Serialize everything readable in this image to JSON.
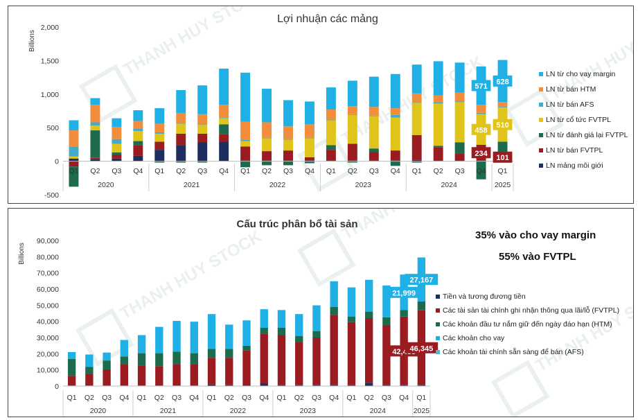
{
  "watermark": "THANH HUY STOCK",
  "colors": {
    "cho_vay": "#1fb0e6",
    "htm": "#f28e3b",
    "afs": "#45a9c8",
    "co_tuc": "#e0c41a",
    "danh_gia": "#1b6b4c",
    "fvtpl_lai": "#9b1c20",
    "moi_gioi": "#1e2e5e",
    "afs_asset": "#5ab4cf",
    "loan_asset": "#1fb0e6",
    "htm_asset": "#1b6b4c",
    "fvtpl_asset": "#9b1c20",
    "cash_asset": "#1e2e5e"
  },
  "annotations": {
    "margin_share": "35% vào cho vay margin",
    "fvtpl_share": "55% vào FVTPL"
  },
  "chart_data": [
    {
      "type": "bar",
      "stacked": true,
      "title": "Lợi nhuận các mảng",
      "ylabel": "Billions",
      "ylim": [
        -500,
        2000
      ],
      "yticks": [
        "-500",
        "0",
        "500",
        "1,000",
        "1,500",
        "2,000"
      ],
      "categories": [
        "Q1",
        "Q2",
        "Q3",
        "Q4",
        "Q1",
        "Q2",
        "Q3",
        "Q4",
        "Q1",
        "Q2",
        "Q3",
        "Q4",
        "Q1",
        "Q2",
        "Q3",
        "Q4",
        "Q1",
        "Q2",
        "Q3",
        "Q4",
        "Q1"
      ],
      "years": [
        {
          "label": "2020",
          "start": 0,
          "count": 4
        },
        {
          "label": "2021",
          "start": 4,
          "count": 4
        },
        {
          "label": "2022",
          "start": 8,
          "count": 4
        },
        {
          "label": "2023",
          "start": 12,
          "count": 4
        },
        {
          "label": "2024",
          "start": 16,
          "count": 4
        },
        {
          "label": "2025",
          "start": 20,
          "count": 1
        }
      ],
      "legend_position": "right",
      "series": [
        {
          "name": "LN mảng môi giới",
          "color_key": "moi_gioi",
          "values": [
            40,
            30,
            40,
            80,
            170,
            240,
            280,
            290,
            10,
            10,
            10,
            10,
            10,
            10,
            10,
            10,
            20,
            10,
            10,
            10,
            10
          ]
        },
        {
          "name": "LN từ bán FVTPL",
          "color_key": "fvtpl_lai",
          "values": [
            -80,
            20,
            60,
            160,
            120,
            170,
            130,
            110,
            210,
            140,
            150,
            50,
            160,
            250,
            130,
            150,
            370,
            200,
            100,
            234,
            101
          ]
        },
        {
          "name": "LN từ đánh giá lại FVTPL",
          "color_key": "danh_gia",
          "values": [
            -300,
            410,
            30,
            60,
            -20,
            -20,
            -20,
            150,
            -90,
            -60,
            -60,
            -30,
            70,
            -20,
            50,
            -70,
            -20,
            20,
            170,
            -270,
            180
          ]
        },
        {
          "name": "LN từ cổ tức FVTPL",
          "color_key": "co_tuc",
          "values": [
            30,
            70,
            130,
            150,
            120,
            150,
            130,
            90,
            80,
            190,
            160,
            280,
            370,
            430,
            480,
            490,
            480,
            630,
            600,
            458,
            510
          ]
        },
        {
          "name": "LN từ bán AFS",
          "color_key": "afs",
          "values": [
            150,
            50,
            70,
            40,
            20,
            10,
            10,
            10,
            20,
            10,
            10,
            10,
            10,
            10,
            10,
            40,
            10,
            20,
            10,
            20,
            10
          ]
        },
        {
          "name": "LN từ bán HTM",
          "color_key": "htm",
          "values": [
            240,
            260,
            180,
            110,
            130,
            150,
            150,
            190,
            270,
            230,
            190,
            200,
            150,
            120,
            130,
            100,
            130,
            100,
            130,
            120,
            70
          ]
        },
        {
          "name": "LN từ cho vay margin",
          "color_key": "cho_vay",
          "values": [
            150,
            100,
            130,
            160,
            230,
            340,
            430,
            540,
            730,
            500,
            390,
            340,
            330,
            380,
            450,
            510,
            430,
            510,
            450,
            571,
            628
          ]
        }
      ],
      "data_labels": [
        {
          "series": "LN từ cho vay margin",
          "index": 19,
          "text": "571"
        },
        {
          "series": "LN từ cho vay margin",
          "index": 20,
          "text": "628"
        },
        {
          "series": "LN từ cổ tức FVTPL",
          "index": 19,
          "text": "458"
        },
        {
          "series": "LN từ cổ tức FVTPL",
          "index": 20,
          "text": "510"
        },
        {
          "series": "LN từ bán FVTPL",
          "index": 19,
          "text": "234"
        },
        {
          "series": "LN từ bán FVTPL",
          "index": 20,
          "text": "101"
        }
      ]
    },
    {
      "type": "bar",
      "stacked": true,
      "title": "Cấu trúc phân bổ tài sản",
      "ylabel": "Billions",
      "ylim": [
        0,
        90000
      ],
      "yticks": [
        "0",
        "10,000",
        "20,000",
        "30,000",
        "40,000",
        "50,000",
        "60,000",
        "70,000",
        "80,000",
        "90,000"
      ],
      "categories": [
        "Q1",
        "Q2",
        "Q3",
        "Q4",
        "Q1",
        "Q2",
        "Q3",
        "Q4",
        "Q1",
        "Q2",
        "Q3",
        "Q4",
        "Q1",
        "Q2",
        "Q3",
        "Q4",
        "Q1",
        "Q2",
        "Q3",
        "Q4",
        "Q1"
      ],
      "years": [
        {
          "label": "2020",
          "start": 0,
          "count": 4
        },
        {
          "label": "2021",
          "start": 4,
          "count": 4
        },
        {
          "label": "2022",
          "start": 8,
          "count": 4
        },
        {
          "label": "2023",
          "start": 12,
          "count": 4
        },
        {
          "label": "2024",
          "start": 16,
          "count": 4
        },
        {
          "label": "2025",
          "start": 20,
          "count": 1
        }
      ],
      "legend_position": "right",
      "series": [
        {
          "name": "Tiền và tương đương tiền",
          "color_key": "cash_asset",
          "values": [
            300,
            300,
            300,
            300,
            300,
            300,
            300,
            300,
            1000,
            500,
            400,
            1500,
            500,
            500,
            500,
            500,
            500,
            2000,
            500,
            500,
            500
          ]
        },
        {
          "name": "Các tài sản tài chính ghi nhận thông qua lãi/lỗ (FVTPL)",
          "color_key": "fvtpl_asset",
          "values": [
            6000,
            7000,
            10000,
            13000,
            12500,
            12000,
            13000,
            13000,
            16500,
            17000,
            21500,
            31000,
            31000,
            26500,
            29500,
            43500,
            39000,
            40000,
            37000,
            42438,
            46345
          ]
        },
        {
          "name": "Các khoản đầu tư nắm giữ đến ngày đáo hạn (HTM)",
          "color_key": "htm_asset",
          "values": [
            10500,
            4500,
            5500,
            5000,
            7500,
            8000,
            8000,
            7000,
            5500,
            5500,
            3000,
            3500,
            4500,
            4000,
            4000,
            5000,
            3500,
            4000,
            5000,
            4000,
            5500
          ]
        },
        {
          "name": "Các khoản cho vay",
          "color_key": "loan_asset",
          "values": [
            4200,
            7700,
            4900,
            10200,
            11200,
            16300,
            19000,
            19500,
            21500,
            15000,
            15700,
            11500,
            11000,
            13500,
            15900,
            15800,
            18000,
            19700,
            19700,
            21999,
            27167
          ]
        },
        {
          "name": "Các khoản tài chính sẵn sàng để bán (AFS)",
          "color_key": "afs_asset",
          "values": [
            0,
            0,
            0,
            0,
            0,
            0,
            0,
            0,
            0,
            0,
            0,
            0,
            0,
            0,
            0,
            0,
            0,
            0,
            0,
            0,
            0
          ]
        }
      ],
      "data_labels": [
        {
          "series": "Các khoản cho vay",
          "index": 19,
          "text": "21,999"
        },
        {
          "series": "Các khoản cho vay",
          "index": 20,
          "text": "27,167"
        },
        {
          "series": "Các tài sản tài chính ghi nhận thông qua lãi/lỗ (FVTPL)",
          "index": 19,
          "text": "42,438"
        },
        {
          "series": "Các tài sản tài chính ghi nhận thông qua lãi/lỗ (FVTPL)",
          "index": 20,
          "text": "46,345"
        }
      ]
    }
  ]
}
